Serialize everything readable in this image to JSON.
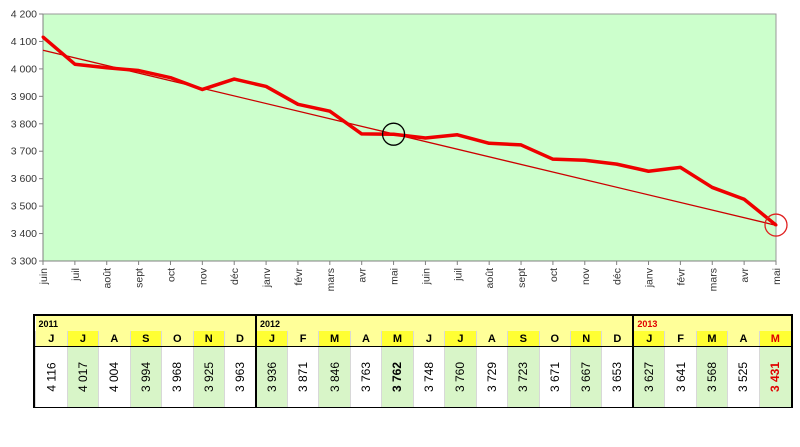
{
  "chart_data": {
    "type": "line",
    "title": "",
    "xlabel": "",
    "ylabel": "",
    "ylim": [
      3300,
      4200
    ],
    "yticks": [
      3300,
      3400,
      3500,
      3600,
      3700,
      3800,
      3900,
      4000,
      4100,
      4200
    ],
    "ytick_labels": [
      "3 300",
      "3 400",
      "3 500",
      "3 600",
      "3 700",
      "3 800",
      "3 900",
      "4 000",
      "4 100",
      "4 200"
    ],
    "categories": [
      "juin",
      "juil",
      "août",
      "sept",
      "oct",
      "nov",
      "déc",
      "janv",
      "févr",
      "mars",
      "avr",
      "mai",
      "juin",
      "juil",
      "août",
      "sept",
      "oct",
      "nov",
      "déc",
      "janv",
      "févr",
      "mars",
      "avr",
      "mai"
    ],
    "values": [
      4116,
      4017,
      4004,
      3994,
      3968,
      3925,
      3963,
      3936,
      3871,
      3846,
      3763,
      3762,
      3748,
      3760,
      3729,
      3723,
      3671,
      3667,
      3653,
      3627,
      3641,
      3568,
      3525,
      3431
    ],
    "trend": {
      "start": 4068,
      "end": 3430
    },
    "highlight_points": [
      {
        "index": 11,
        "color": "#000000"
      },
      {
        "index": 23,
        "color": "#e02020"
      }
    ],
    "plot_background": "#ccffcc",
    "line_color": "#ee0000",
    "grid": false
  },
  "table": {
    "months": [
      "J",
      "J",
      "A",
      "S",
      "O",
      "N",
      "D",
      "J",
      "F",
      "M",
      "A",
      "M",
      "J",
      "J",
      "A",
      "S",
      "O",
      "N",
      "D",
      "J",
      "F",
      "M",
      "A",
      "M"
    ],
    "values": [
      "4 116",
      "4 017",
      "4 004",
      "3 994",
      "3 968",
      "3 925",
      "3 963",
      "3 936",
      "3 871",
      "3 846",
      "3 763",
      "3 762",
      "3 748",
      "3 760",
      "3 729",
      "3 723",
      "3 671",
      "3 667",
      "3 653",
      "3 627",
      "3 641",
      "3 568",
      "3 525",
      "3 431"
    ],
    "years": [
      {
        "label": "2011",
        "span": 7,
        "color": "#000000"
      },
      {
        "label": "2012",
        "span": 12,
        "color": "#000000"
      },
      {
        "label": "2013",
        "span": 5,
        "color": "#e00000"
      }
    ],
    "year_start_indices": [
      7,
      19
    ],
    "bold_indices": [
      11,
      23
    ],
    "red_indices": [
      23
    ],
    "highlight_color": "#ffff33",
    "header_color": "#ffff99",
    "shade_color": "#d8f5c8"
  }
}
